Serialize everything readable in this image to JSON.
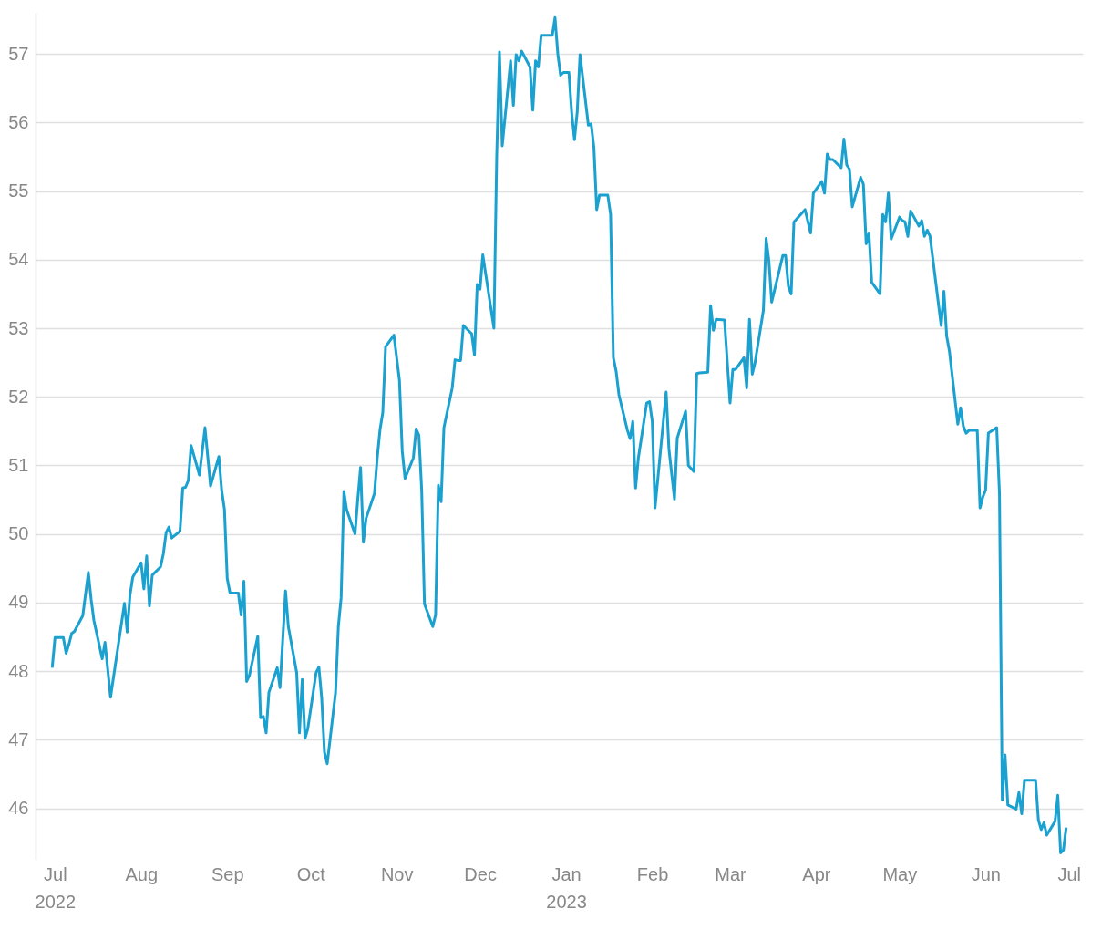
{
  "chart_data": {
    "type": "line",
    "x": [
      "2022-06-30",
      "2022-07-01",
      "2022-07-04",
      "2022-07-05",
      "2022-07-06",
      "2022-07-07",
      "2022-07-08",
      "2022-07-11",
      "2022-07-13",
      "2022-07-14",
      "2022-07-15",
      "2022-07-18",
      "2022-07-19",
      "2022-07-21",
      "2022-07-26",
      "2022-07-27",
      "2022-07-28",
      "2022-07-29",
      "2022-08-01",
      "2022-08-02",
      "2022-08-03",
      "2022-08-04",
      "2022-08-05",
      "2022-08-08",
      "2022-08-09",
      "2022-08-10",
      "2022-08-11",
      "2022-08-12",
      "2022-08-15",
      "2022-08-16",
      "2022-08-17",
      "2022-08-18",
      "2022-08-19",
      "2022-08-22",
      "2022-08-24",
      "2022-08-26",
      "2022-08-29",
      "2022-08-30",
      "2022-08-31",
      "2022-09-01",
      "2022-09-02",
      "2022-09-05",
      "2022-09-06",
      "2022-09-07",
      "2022-09-08",
      "2022-09-09",
      "2022-09-12",
      "2022-09-13",
      "2022-09-14",
      "2022-09-15",
      "2022-09-16",
      "2022-09-19",
      "2022-09-20",
      "2022-09-22",
      "2022-09-23",
      "2022-09-26",
      "2022-09-27",
      "2022-09-28",
      "2022-09-29",
      "2022-09-30",
      "2022-10-03",
      "2022-10-04",
      "2022-10-05",
      "2022-10-06",
      "2022-10-07",
      "2022-10-10",
      "2022-10-11",
      "2022-10-12",
      "2022-10-13",
      "2022-10-14",
      "2022-10-17",
      "2022-10-18",
      "2022-10-19",
      "2022-10-20",
      "2022-10-21",
      "2022-10-24",
      "2022-10-25",
      "2022-10-26",
      "2022-10-27",
      "2022-10-28",
      "2022-10-31",
      "2022-11-01",
      "2022-11-02",
      "2022-11-03",
      "2022-11-04",
      "2022-11-07",
      "2022-11-08",
      "2022-11-09",
      "2022-11-10",
      "2022-11-11",
      "2022-11-14",
      "2022-11-15",
      "2022-11-16",
      "2022-11-17",
      "2022-11-18",
      "2022-11-21",
      "2022-11-22",
      "2022-11-23",
      "2022-11-24",
      "2022-11-25",
      "2022-11-28",
      "2022-11-29",
      "2022-11-30",
      "2022-12-01",
      "2022-12-02",
      "2022-12-06",
      "2022-12-07",
      "2022-12-08",
      "2022-12-09",
      "2022-12-12",
      "2022-12-13",
      "2022-12-14",
      "2022-12-15",
      "2022-12-16",
      "2022-12-19",
      "2022-12-20",
      "2022-12-21",
      "2022-12-22",
      "2022-12-23",
      "2022-12-27",
      "2022-12-28",
      "2022-12-29",
      "2022-12-30",
      "2022-12-31",
      "2023-01-02",
      "2023-01-03",
      "2023-01-04",
      "2023-01-05",
      "2023-01-06",
      "2023-01-09",
      "2023-01-10",
      "2023-01-11",
      "2023-01-12",
      "2023-01-13",
      "2023-01-16",
      "2023-01-17",
      "2023-01-18",
      "2023-01-19",
      "2023-01-20",
      "2023-01-23",
      "2023-01-24",
      "2023-01-25",
      "2023-01-26",
      "2023-01-27",
      "2023-01-30",
      "2023-01-31",
      "2023-02-01",
      "2023-02-02",
      "2023-02-06",
      "2023-02-07",
      "2023-02-09",
      "2023-02-10",
      "2023-02-13",
      "2023-02-14",
      "2023-02-16",
      "2023-02-17",
      "2023-02-18",
      "2023-02-21",
      "2023-02-22",
      "2023-02-23",
      "2023-02-24",
      "2023-02-27",
      "2023-03-01",
      "2023-03-02",
      "2023-03-03",
      "2023-03-06",
      "2023-03-07",
      "2023-03-08",
      "2023-03-09",
      "2023-03-10",
      "2023-03-13",
      "2023-03-14",
      "2023-03-15",
      "2023-03-16",
      "2023-03-20",
      "2023-03-21",
      "2023-03-22",
      "2023-03-23",
      "2023-03-24",
      "2023-03-28",
      "2023-03-30",
      "2023-03-31",
      "2023-04-03",
      "2023-04-04",
      "2023-04-05",
      "2023-04-06",
      "2023-04-07",
      "2023-04-10",
      "2023-04-11",
      "2023-04-12",
      "2023-04-13",
      "2023-04-14",
      "2023-04-17",
      "2023-04-18",
      "2023-04-19",
      "2023-04-20",
      "2023-04-21",
      "2023-04-24",
      "2023-04-25",
      "2023-04-26",
      "2023-04-27",
      "2023-04-28",
      "2023-05-01",
      "2023-05-02",
      "2023-05-03",
      "2023-05-04",
      "2023-05-05",
      "2023-05-08",
      "2023-05-09",
      "2023-05-10",
      "2023-05-11",
      "2023-05-12",
      "2023-05-16",
      "2023-05-17",
      "2023-05-18",
      "2023-05-19",
      "2023-05-22",
      "2023-05-23",
      "2023-05-24",
      "2023-05-25",
      "2023-05-26",
      "2023-05-29",
      "2023-05-30",
      "2023-05-31",
      "2023-06-01",
      "2023-06-02",
      "2023-06-05",
      "2023-06-06",
      "2023-06-07",
      "2023-06-08",
      "2023-06-09",
      "2023-06-12",
      "2023-06-13",
      "2023-06-14",
      "2023-06-15",
      "2023-06-16",
      "2023-06-19",
      "2023-06-20",
      "2023-06-21",
      "2023-06-22",
      "2023-06-23",
      "2023-06-26",
      "2023-06-27",
      "2023-06-28",
      "2023-06-29",
      "2023-06-30"
    ],
    "series": [
      {
        "color": "#1ba1cf",
        "values": [
          48.05,
          48.49,
          48.49,
          48.26,
          48.39,
          48.55,
          48.58,
          48.81,
          49.44,
          49.05,
          48.74,
          48.18,
          48.42,
          47.62,
          48.99,
          48.57,
          49.11,
          49.37,
          49.58,
          49.2,
          49.68,
          48.95,
          49.4,
          49.52,
          49.71,
          50.02,
          50.1,
          49.94,
          50.04,
          50.67,
          50.68,
          50.78,
          51.29,
          50.86,
          51.55,
          50.7,
          51.13,
          50.64,
          50.36,
          49.35,
          49.14,
          49.14,
          48.82,
          49.31,
          47.85,
          47.94,
          48.51,
          47.32,
          47.34,
          47.1,
          47.69,
          48.05,
          47.76,
          49.17,
          48.65,
          47.98,
          47.1,
          47.88,
          47.02,
          47.16,
          47.98,
          48.06,
          47.61,
          46.82,
          46.65,
          47.69,
          48.65,
          49.07,
          50.62,
          50.35,
          50.0,
          50.51,
          50.97,
          49.88,
          50.23,
          50.59,
          51.11,
          51.52,
          51.77,
          52.73,
          52.9,
          52.57,
          52.24,
          51.21,
          50.81,
          51.11,
          51.53,
          51.44,
          50.64,
          48.98,
          48.65,
          48.82,
          50.71,
          50.47,
          51.55,
          52.13,
          52.54,
          52.53,
          52.53,
          53.04,
          52.92,
          52.61,
          53.64,
          53.57,
          54.07,
          53.0,
          55.5,
          57.03,
          55.66,
          56.9,
          56.25,
          56.99,
          56.9,
          57.04,
          56.81,
          56.18,
          56.9,
          56.81,
          57.27,
          57.27,
          57.53,
          57.0,
          56.69,
          56.73,
          56.73,
          56.14,
          55.75,
          56.16,
          56.99,
          55.96,
          55.98,
          55.63,
          54.73,
          54.94,
          54.94,
          54.66,
          52.57,
          52.37,
          52.03,
          51.52,
          51.39,
          51.64,
          50.67,
          51.11,
          51.91,
          51.93,
          51.64,
          50.38,
          52.07,
          51.24,
          50.51,
          51.4,
          51.79,
          51.0,
          50.91,
          52.34,
          52.35,
          52.36,
          53.33,
          52.97,
          53.13,
          53.12,
          51.91,
          52.4,
          52.4,
          52.57,
          52.13,
          53.13,
          52.33,
          52.5,
          53.26,
          54.31,
          53.98,
          53.38,
          54.06,
          54.06,
          53.61,
          53.5,
          54.55,
          54.73,
          54.39,
          54.97,
          55.14,
          54.97,
          55.54,
          55.46,
          55.46,
          55.34,
          55.76,
          55.38,
          55.32,
          54.77,
          55.2,
          55.1,
          54.23,
          54.39,
          53.67,
          53.5,
          54.66,
          54.55,
          54.97,
          54.3,
          54.62,
          54.57,
          54.55,
          54.34,
          54.71,
          54.49,
          54.57,
          54.34,
          54.43,
          54.34,
          53.04,
          53.54,
          52.88,
          52.66,
          51.6,
          51.84,
          51.57,
          51.47,
          51.51,
          51.51,
          50.38,
          50.54,
          50.64,
          51.47,
          51.55,
          50.58,
          46.12,
          46.78,
          46.05,
          45.99,
          46.23,
          45.92,
          46.41,
          46.41,
          46.41,
          45.83,
          45.69,
          45.79,
          45.61,
          45.81,
          46.19,
          45.35,
          45.39,
          45.72
        ]
      }
    ],
    "xlim": [
      "2022-06-24",
      "2023-07-06"
    ],
    "xticks": [
      {
        "value": "2022-07-01",
        "label": "Jul 2022"
      },
      {
        "value": "2022-08-01",
        "label": "Aug"
      },
      {
        "value": "2022-09-01",
        "label": "Sep"
      },
      {
        "value": "2022-10-01",
        "label": "Oct"
      },
      {
        "value": "2022-11-01",
        "label": "Nov"
      },
      {
        "value": "2022-12-01",
        "label": "Dec"
      },
      {
        "value": "2023-01-01",
        "label": "Jan 2023"
      },
      {
        "value": "2023-02-01",
        "label": "Feb"
      },
      {
        "value": "2023-03-01",
        "label": "Mar"
      },
      {
        "value": "2023-04-01",
        "label": "Apr"
      },
      {
        "value": "2023-05-01",
        "label": "May"
      },
      {
        "value": "2023-06-01",
        "label": "Jun"
      },
      {
        "value": "2023-07-01",
        "label": "Jul"
      }
    ],
    "ylim": [
      45.25,
      57.6
    ],
    "yticks": [
      46,
      47,
      48,
      49,
      50,
      51,
      52,
      53,
      54,
      55,
      56,
      57
    ],
    "grid": "y",
    "legend": false,
    "marker": "none",
    "line_style": "solid"
  }
}
